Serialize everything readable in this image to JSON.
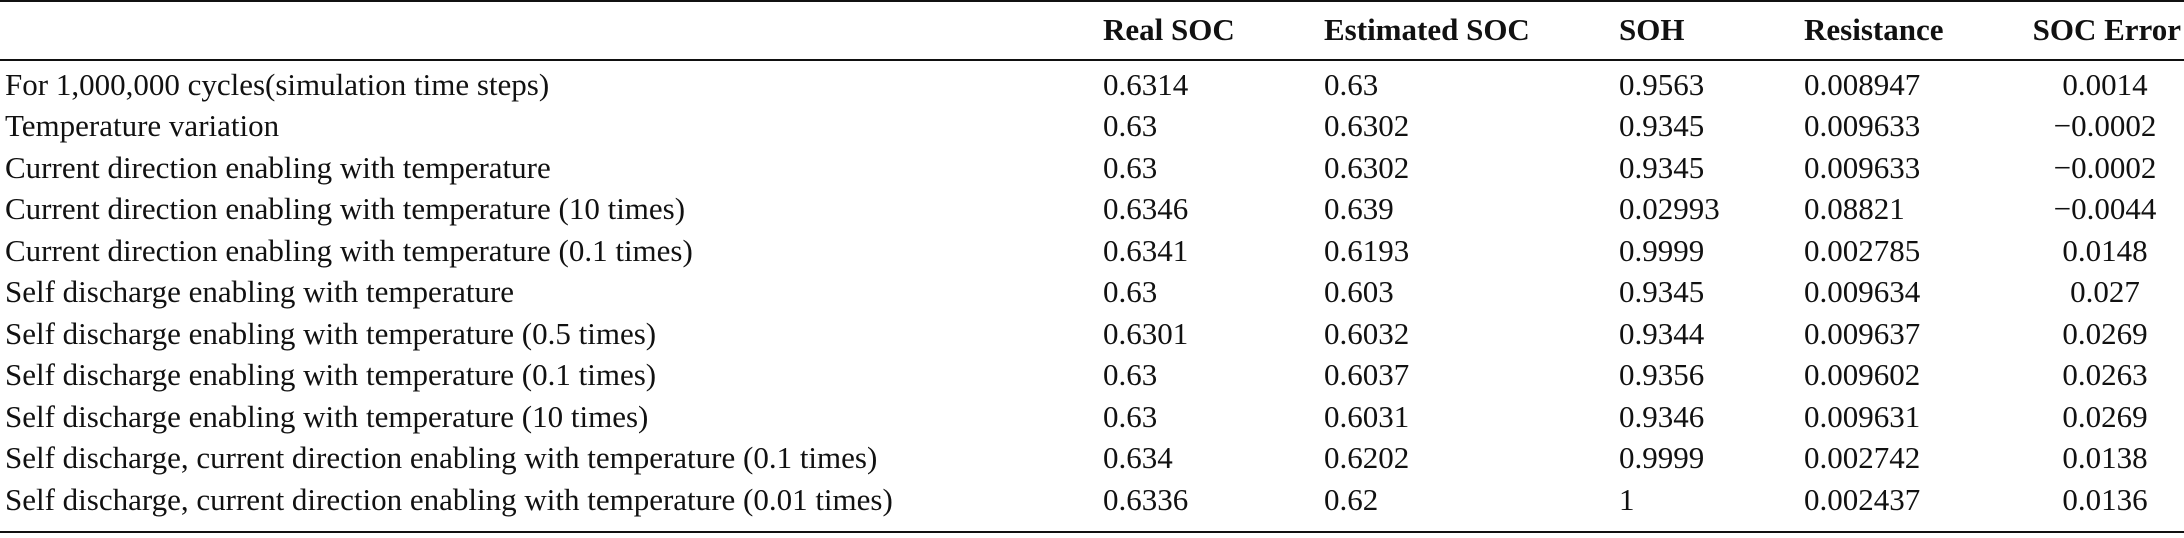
{
  "table": {
    "headers": [
      "",
      "Real SOC",
      "Estimated SOC",
      "SOH",
      "Resistance",
      "SOC Error"
    ],
    "rows": [
      [
        "For 1,000,000 cycles(simulation time steps)",
        "0.6314",
        "0.63",
        "0.9563",
        "0.008947",
        "0.0014"
      ],
      [
        "Temperature variation",
        "0.63",
        "0.6302",
        "0.9345",
        "0.009633",
        "−0.0002"
      ],
      [
        "Current direction enabling with temperature",
        "0.63",
        "0.6302",
        "0.9345",
        "0.009633",
        "−0.0002"
      ],
      [
        "Current direction enabling with temperature (10 times)",
        "0.6346",
        "0.639",
        "0.02993",
        "0.08821",
        "−0.0044"
      ],
      [
        "Current direction enabling with temperature (0.1 times)",
        "0.6341",
        "0.6193",
        "0.9999",
        "0.002785",
        "0.0148"
      ],
      [
        "Self discharge enabling with temperature",
        "0.63",
        "0.603",
        "0.9345",
        "0.009634",
        "0.027"
      ],
      [
        "Self discharge enabling with temperature (0.5 times)",
        "0.6301",
        "0.6032",
        "0.9344",
        "0.009637",
        "0.0269"
      ],
      [
        "Self discharge enabling with temperature (0.1 times)",
        "0.63",
        "0.6037",
        "0.9356",
        "0.009602",
        "0.0263"
      ],
      [
        "Self discharge enabling with temperature (10 times)",
        "0.63",
        "0.6031",
        "0.9346",
        "0.009631",
        "0.0269"
      ],
      [
        "Self discharge, current direction enabling with temperature (0.1 times)",
        "0.634",
        "0.6202",
        "0.9999",
        "0.002742",
        "0.0138"
      ],
      [
        "Self discharge, current direction enabling with temperature (0.01 times)",
        "0.6336",
        "0.62",
        "1",
        "0.002437",
        "0.0136"
      ]
    ]
  }
}
